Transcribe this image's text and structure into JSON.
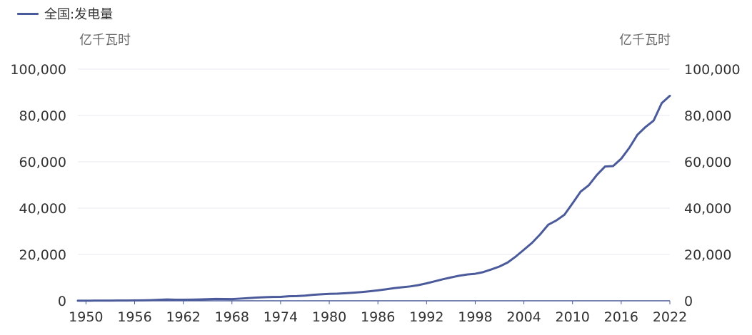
{
  "chart_data": {
    "type": "line",
    "legend": {
      "position": "top-left",
      "entries": [
        "全国:发电量"
      ]
    },
    "y_unit_left": "亿千瓦时",
    "y_unit_right": "亿千瓦时",
    "xlim": [
      1949,
      2022
    ],
    "ylim": [
      0,
      100000
    ],
    "x_ticks": [
      "1950",
      "1956",
      "1962",
      "1968",
      "1974",
      "1980",
      "1986",
      "1992",
      "1998",
      "2004",
      "2010",
      "2016",
      "2022"
    ],
    "y_ticks": [
      "0",
      "20,000",
      "40,000",
      "60,000",
      "80,000",
      "100,000"
    ],
    "grid": true,
    "series": [
      {
        "name": "全国:发电量",
        "color": "#4a5a9a",
        "x": [
          1949,
          1950,
          1951,
          1952,
          1953,
          1954,
          1955,
          1956,
          1957,
          1958,
          1959,
          1960,
          1961,
          1962,
          1963,
          1964,
          1965,
          1966,
          1967,
          1968,
          1969,
          1970,
          1971,
          1972,
          1973,
          1974,
          1975,
          1976,
          1977,
          1978,
          1979,
          1980,
          1981,
          1982,
          1983,
          1984,
          1985,
          1986,
          1987,
          1988,
          1989,
          1990,
          1991,
          1992,
          1993,
          1994,
          1995,
          1996,
          1997,
          1998,
          1999,
          2000,
          2001,
          2002,
          2003,
          2004,
          2005,
          2006,
          2007,
          2008,
          2009,
          2010,
          2011,
          2012,
          2013,
          2014,
          2015,
          2016,
          2017,
          2018,
          2019,
          2020,
          2021,
          2022
        ],
        "values": [
          43,
          46,
          58,
          73,
          92,
          110,
          123,
          166,
          193,
          275,
          423,
          594,
          480,
          458,
          490,
          560,
          676,
          825,
          774,
          716,
          940,
          1159,
          1384,
          1524,
          1668,
          1688,
          1958,
          2031,
          2234,
          2566,
          2820,
          3006,
          3093,
          3277,
          3514,
          3770,
          4107,
          4495,
          4973,
          5452,
          5848,
          6213,
          6775,
          7539,
          8395,
          9281,
          10070,
          10813,
          11356,
          11670,
          12393,
          13556,
          14808,
          16540,
          19106,
          22033,
          25003,
          28657,
          32816,
          34669,
          37147,
          42072,
          47130,
          49876,
          54316,
          57945,
          58146,
          61332,
          66044,
          71661,
          75034,
          77791,
          85342,
          88487
        ]
      }
    ]
  },
  "legend_label": "全国:发电量",
  "unit_left": "亿千瓦时",
  "unit_right": "亿千瓦时",
  "colors": {
    "series": "#4a5a9a",
    "grid": "#e8eaf0",
    "axis": "#4a5a9a",
    "tick_text": "#333333"
  }
}
